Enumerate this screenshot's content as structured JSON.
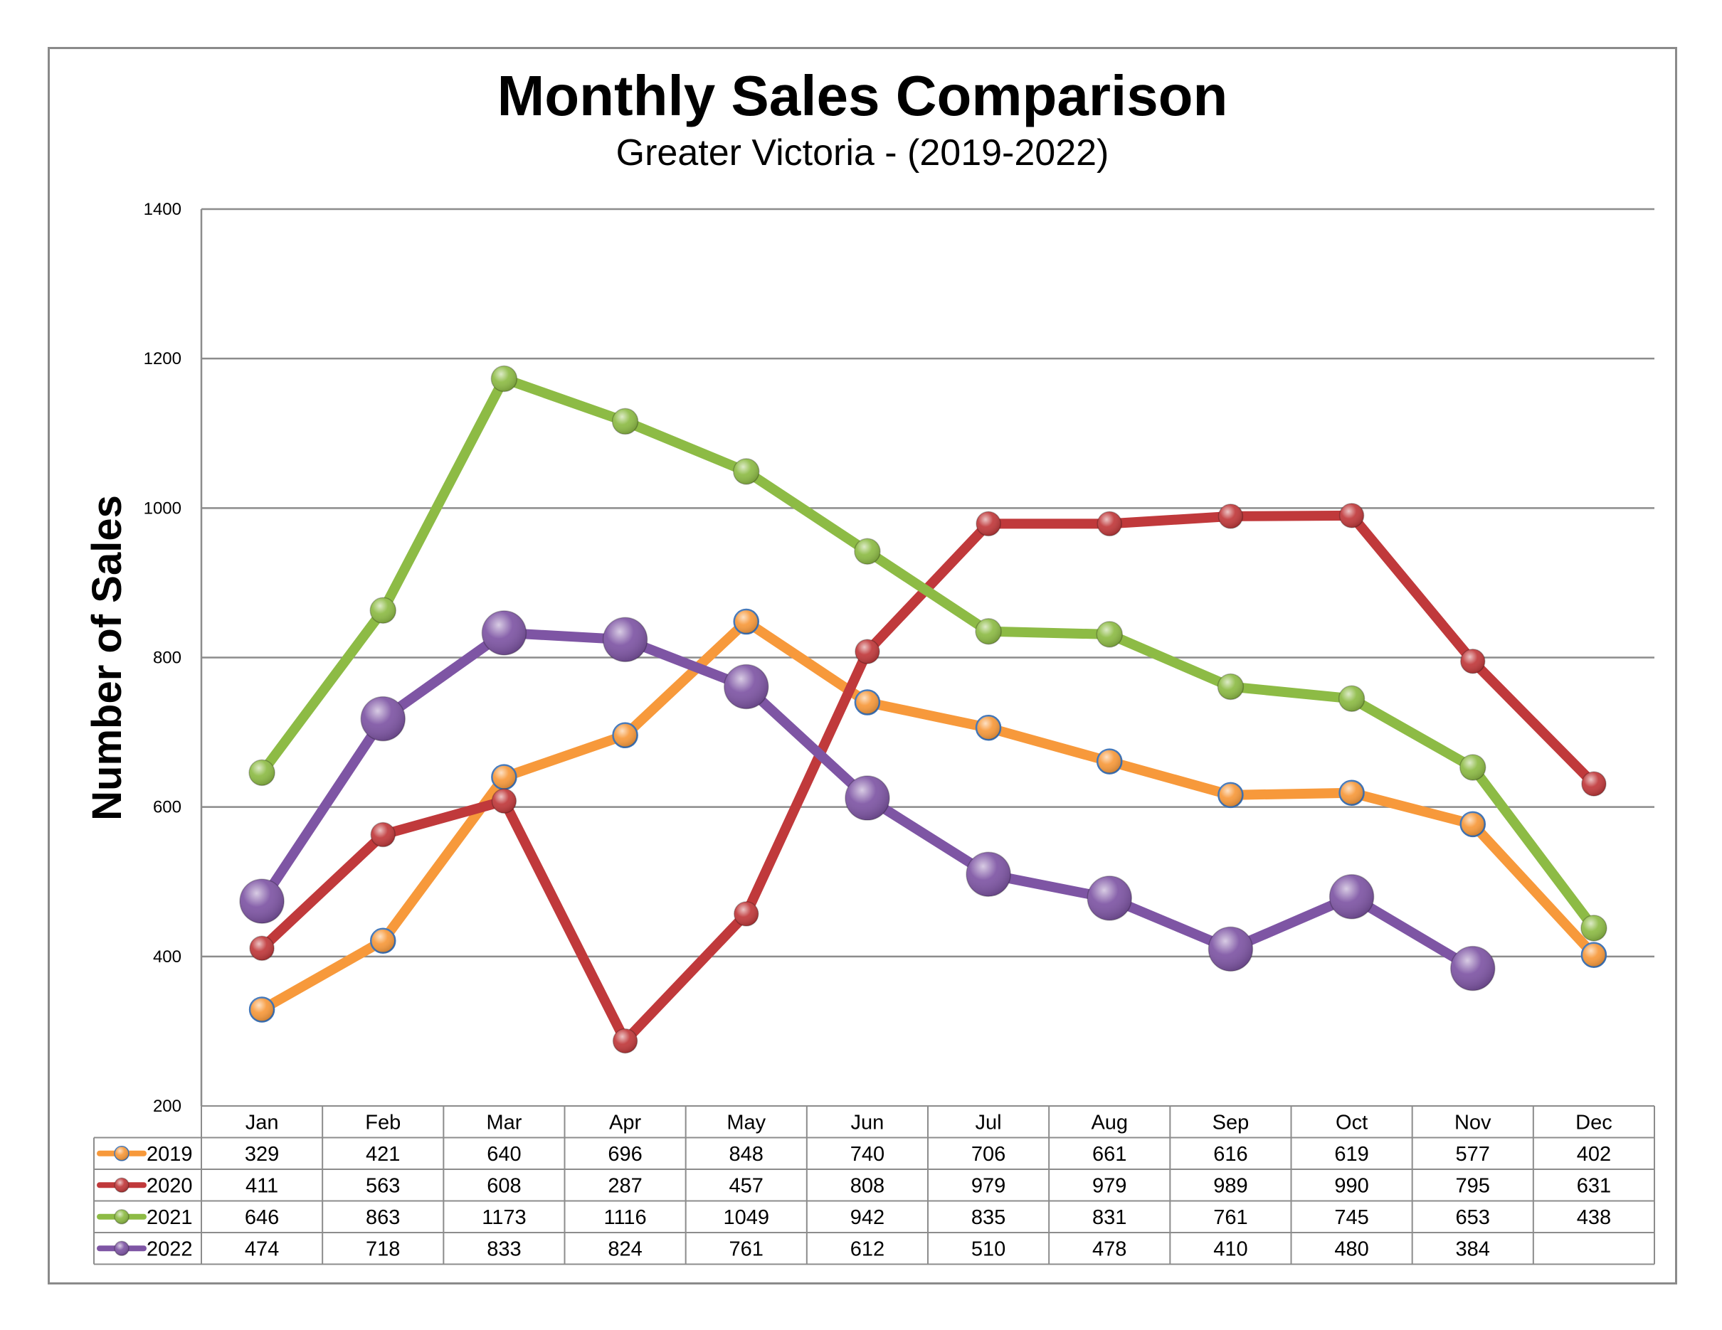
{
  "chart_data": {
    "type": "line",
    "title": "Monthly Sales Comparison",
    "subtitle": "Greater Victoria - (2019-2022)",
    "xlabel": "",
    "ylabel": "Number of Sales",
    "ylim": [
      200,
      1400
    ],
    "yticks": [
      200,
      400,
      600,
      800,
      1000,
      1200,
      1400
    ],
    "grid": true,
    "legend": "data-table",
    "categories": [
      "Jan",
      "Feb",
      "Mar",
      "Apr",
      "May",
      "Jun",
      "Jul",
      "Aug",
      "Sep",
      "Oct",
      "Nov",
      "Dec"
    ],
    "series": [
      {
        "name": "2019",
        "color": "#f7993b",
        "values": [
          329,
          421,
          640,
          696,
          848,
          740,
          706,
          661,
          616,
          619,
          577,
          402
        ]
      },
      {
        "name": "2020",
        "color": "#c0393b",
        "values": [
          411,
          563,
          608,
          287,
          457,
          808,
          979,
          979,
          989,
          990,
          795,
          631
        ]
      },
      {
        "name": "2021",
        "color": "#8dbb45",
        "values": [
          646,
          863,
          1173,
          1116,
          1049,
          942,
          835,
          831,
          761,
          745,
          653,
          438
        ]
      },
      {
        "name": "2022",
        "color": "#7e55a4",
        "values": [
          474,
          718,
          833,
          824,
          761,
          612,
          510,
          478,
          410,
          480,
          384,
          null
        ]
      }
    ]
  }
}
